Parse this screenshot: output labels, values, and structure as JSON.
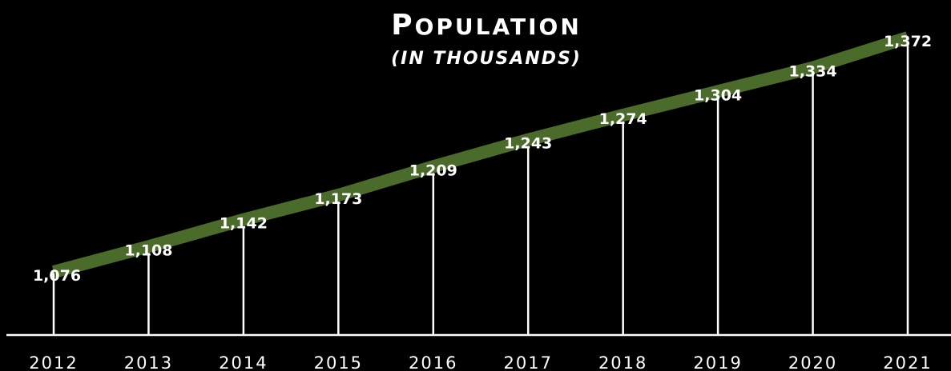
{
  "colors": {
    "background": "#000000",
    "line": "#4a6b2a",
    "stem": "#ffffff",
    "text": "#ffffff"
  },
  "chart_data": {
    "type": "line",
    "title_initial": "P",
    "title_rest": "OPULATION",
    "subtitle": "(IN THOUSANDS)",
    "xlabel": "",
    "ylabel": "",
    "categories": [
      "2012",
      "2013",
      "2014",
      "2015",
      "2016",
      "2017",
      "2018",
      "2019",
      "2020",
      "2021"
    ],
    "values": [
      1076,
      1108,
      1142,
      1173,
      1209,
      1243,
      1274,
      1304,
      1334,
      1372
    ],
    "value_labels": [
      "1,076",
      "1,108",
      "1,142",
      "1,173",
      "1,209",
      "1,243",
      "1,274",
      "1,304",
      "1,334",
      "1,372"
    ],
    "grid": false,
    "legend": "none"
  }
}
